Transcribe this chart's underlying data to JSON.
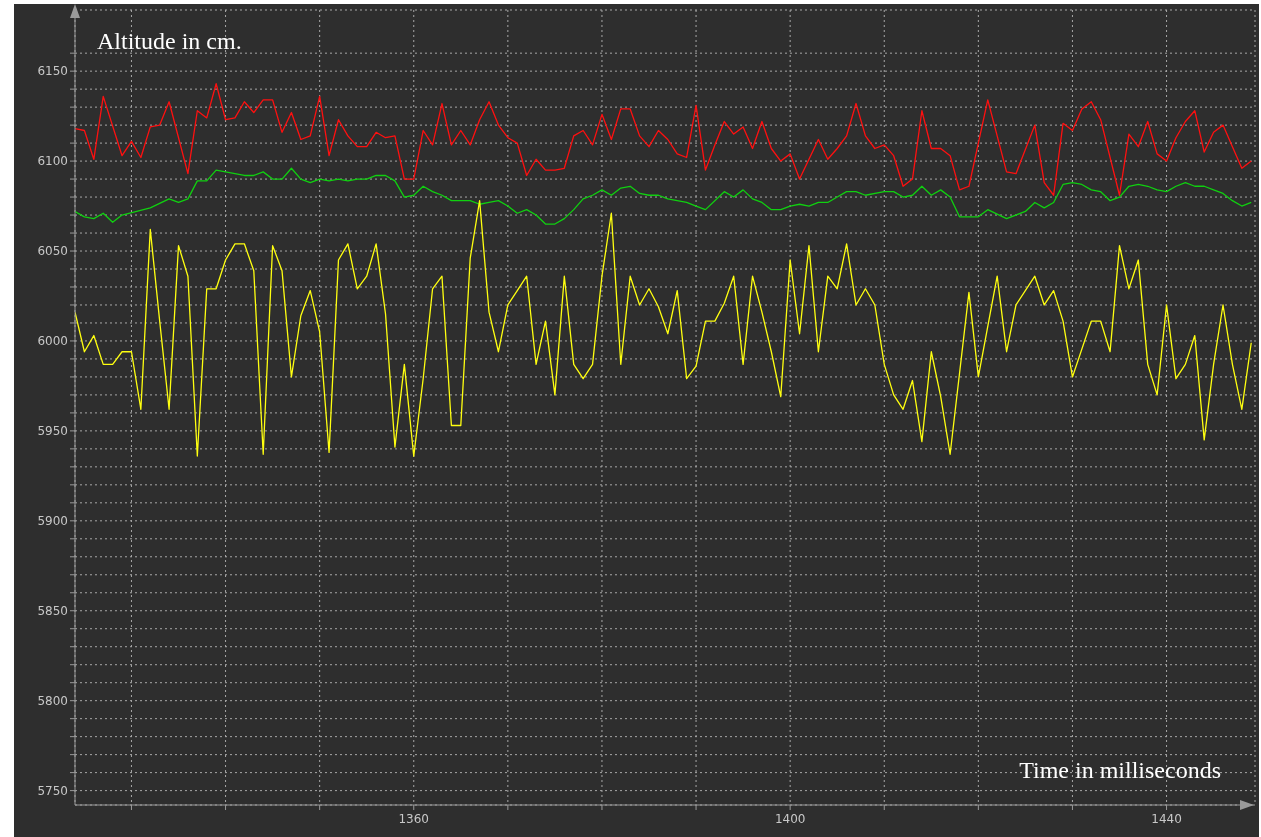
{
  "chart_data": {
    "type": "line",
    "xlabel": "Time in milliseconds",
    "ylabel": "Altitude in cm.",
    "xlim": [
      1324,
      1449.4
    ],
    "ylim": [
      5742,
      6184
    ],
    "xticks": [
      {
        "value": 1330,
        "label": null
      },
      {
        "value": 1340,
        "label": null
      },
      {
        "value": 1350,
        "label": null
      },
      1360,
      {
        "value": 1370,
        "label": null
      },
      {
        "value": 1380,
        "label": null
      },
      {
        "value": 1390,
        "label": null
      },
      1400,
      {
        "value": 1410,
        "label": null
      },
      {
        "value": 1420,
        "label": null
      },
      {
        "value": 1430,
        "label": null
      },
      1440
    ],
    "yticks": [
      5750,
      {
        "value": 5760,
        "label": null
      },
      {
        "value": 5770,
        "label": null
      },
      {
        "value": 5780,
        "label": null
      },
      {
        "value": 5790,
        "label": null
      },
      5800,
      {
        "value": 5810,
        "label": null
      },
      {
        "value": 5820,
        "label": null
      },
      {
        "value": 5830,
        "label": null
      },
      {
        "value": 5840,
        "label": null
      },
      5850,
      {
        "value": 5860,
        "label": null
      },
      {
        "value": 5870,
        "label": null
      },
      {
        "value": 5880,
        "label": null
      },
      {
        "value": 5890,
        "label": null
      },
      5900,
      {
        "value": 5910,
        "label": null
      },
      {
        "value": 5920,
        "label": null
      },
      {
        "value": 5930,
        "label": null
      },
      {
        "value": 5940,
        "label": null
      },
      5950,
      {
        "value": 5960,
        "label": null
      },
      {
        "value": 5970,
        "label": null
      },
      {
        "value": 5980,
        "label": null
      },
      {
        "value": 5990,
        "label": null
      },
      6000,
      {
        "value": 6010,
        "label": null
      },
      {
        "value": 6020,
        "label": null
      },
      {
        "value": 6030,
        "label": null
      },
      {
        "value": 6040,
        "label": null
      },
      6050,
      {
        "value": 6060,
        "label": null
      },
      {
        "value": 6070,
        "label": null
      },
      {
        "value": 6080,
        "label": null
      },
      {
        "value": 6090,
        "label": null
      },
      6100,
      {
        "value": 6110,
        "label": null
      },
      {
        "value": 6120,
        "label": null
      },
      {
        "value": 6130,
        "label": null
      },
      {
        "value": 6140,
        "label": null
      },
      6150,
      {
        "value": 6160,
        "label": null
      }
    ],
    "grid": true,
    "series": [
      {
        "color": "#ff1010",
        "x": [
          1324,
          1325,
          1326,
          1327,
          1329,
          1330,
          1331,
          1332,
          1333,
          1334,
          1336,
          1337,
          1338,
          1339,
          1340,
          1341,
          1342,
          1343,
          1344,
          1345,
          1346,
          1347,
          1348,
          1349,
          1350,
          1351,
          1352,
          1353,
          1354,
          1355,
          1356,
          1357,
          1358,
          1359,
          1360,
          1361,
          1362,
          1363,
          1364,
          1365,
          1366,
          1367,
          1368,
          1369,
          1370,
          1371,
          1372,
          1373,
          1374,
          1375,
          1376,
          1377,
          1378,
          1379,
          1380,
          1381,
          1382,
          1383,
          1384,
          1385,
          1386,
          1387,
          1388,
          1389,
          1390,
          1391,
          1392,
          1393,
          1394,
          1395,
          1396,
          1397,
          1398,
          1399,
          1400,
          1401,
          1402,
          1403,
          1404,
          1405,
          1406,
          1407,
          1408,
          1409,
          1410,
          1411,
          1412,
          1413,
          1414,
          1415,
          1416,
          1417,
          1418,
          1419,
          1421,
          1423,
          1424,
          1426,
          1427,
          1428,
          1429,
          1430,
          1431,
          1432,
          1433,
          1435,
          1436,
          1437,
          1438,
          1439,
          1440,
          1441,
          1442,
          1443,
          1444,
          1445,
          1446,
          1447,
          1448,
          1449
        ],
        "values": [
          6118,
          6117,
          6101,
          6136,
          6103,
          6111,
          6102,
          6119,
          6120,
          6133,
          6093,
          6128,
          6124,
          6143,
          6123,
          6124,
          6133,
          6127,
          6134,
          6134,
          6116,
          6127,
          6112,
          6114,
          6136,
          6103,
          6123,
          6114,
          6108,
          6108,
          6116,
          6113,
          6114,
          6090,
          6090,
          6117,
          6109,
          6132,
          6109,
          6117,
          6109,
          6123,
          6133,
          6120,
          6113,
          6110,
          6092,
          6101,
          6095,
          6095,
          6096,
          6114,
          6117,
          6109,
          6126,
          6112,
          6129,
          6129,
          6114,
          6108,
          6117,
          6112,
          6104,
          6102,
          6131,
          6095,
          6109,
          6122,
          6115,
          6119,
          6107,
          6122,
          6107,
          6100,
          6104,
          6090,
          6101,
          6112,
          6101,
          6107,
          6114,
          6132,
          6114,
          6107,
          6109,
          6103,
          6086,
          6090,
          6128,
          6107,
          6107,
          6103,
          6084,
          6086,
          6134,
          6094,
          6093,
          6120,
          6088,
          6081,
          6121,
          6117,
          6129,
          6133,
          6123,
          6081,
          6115,
          6108,
          6122,
          6104,
          6100,
          6113,
          6122,
          6128,
          6105,
          6116,
          6120,
          6108,
          6096,
          6100
        ]
      },
      {
        "color": "#10d010",
        "x": [
          1324,
          1325,
          1326,
          1327,
          1328,
          1329,
          1332,
          1334,
          1335,
          1336,
          1337,
          1338,
          1339,
          1340,
          1342,
          1343,
          1344,
          1345,
          1346,
          1347,
          1348,
          1349,
          1350,
          1351,
          1352,
          1353,
          1354,
          1355,
          1356,
          1357,
          1358,
          1359,
          1360,
          1361,
          1362,
          1363,
          1364,
          1366,
          1367,
          1368,
          1369,
          1370,
          1371,
          1372,
          1373,
          1374,
          1375,
          1376,
          1377,
          1378,
          1379,
          1380,
          1381,
          1382,
          1383,
          1384,
          1385,
          1386,
          1387,
          1389,
          1390,
          1391,
          1393,
          1394,
          1395,
          1396,
          1397,
          1398,
          1399,
          1400,
          1401,
          1402,
          1403,
          1404,
          1405,
          1406,
          1407,
          1408,
          1410,
          1411,
          1412,
          1413,
          1414,
          1415,
          1416,
          1417,
          1418,
          1420,
          1421,
          1423,
          1425,
          1426,
          1427,
          1428,
          1429,
          1430,
          1431,
          1432,
          1433,
          1434,
          1435,
          1436,
          1437,
          1438,
          1439,
          1440,
          1441,
          1442,
          1443,
          1444,
          1445,
          1446,
          1447,
          1448,
          1449
        ],
        "values": [
          6072,
          6069,
          6068,
          6071,
          6066,
          6070,
          6074,
          6079,
          6077,
          6079,
          6089,
          6089,
          6095,
          6094,
          6092,
          6092,
          6094,
          6090,
          6090,
          6096,
          6090,
          6088,
          6090,
          6089,
          6090,
          6089,
          6090,
          6090,
          6092,
          6092,
          6089,
          6080,
          6081,
          6086,
          6083,
          6081,
          6078,
          6078,
          6076,
          6077,
          6078,
          6075,
          6071,
          6073,
          6070,
          6065,
          6065,
          6068,
          6073,
          6079,
          6081,
          6084,
          6081,
          6085,
          6086,
          6082,
          6081,
          6081,
          6079,
          6077,
          6075,
          6073,
          6083,
          6080,
          6084,
          6079,
          6077,
          6073,
          6073,
          6075,
          6076,
          6075,
          6077,
          6077,
          6080,
          6083,
          6083,
          6081,
          6083,
          6083,
          6080,
          6081,
          6086,
          6081,
          6084,
          6080,
          6069,
          6069,
          6073,
          6068,
          6072,
          6077,
          6074,
          6077,
          6087,
          6088,
          6087,
          6084,
          6083,
          6078,
          6080,
          6086,
          6087,
          6086,
          6084,
          6083,
          6086,
          6088,
          6086,
          6086,
          6084,
          6082,
          6078,
          6075,
          6077
        ]
      },
      {
        "color": "#ffff10",
        "x": [
          1324,
          1325,
          1326,
          1327,
          1328,
          1329,
          1330,
          1331,
          1332,
          1333,
          1334,
          1335,
          1336,
          1337,
          1338,
          1339,
          1340,
          1341,
          1342,
          1343,
          1344,
          1345,
          1346,
          1347,
          1348,
          1349,
          1350,
          1351,
          1352,
          1353,
          1354,
          1355,
          1356,
          1357,
          1358,
          1359,
          1360,
          1361,
          1362,
          1363,
          1364,
          1365,
          1366,
          1367,
          1368,
          1369,
          1370,
          1371,
          1372,
          1373,
          1374,
          1375,
          1376,
          1377,
          1378,
          1379,
          1380,
          1381,
          1382,
          1383,
          1384,
          1385,
          1386,
          1387,
          1388,
          1389,
          1390,
          1391,
          1392,
          1393,
          1394,
          1395,
          1396,
          1397,
          1398,
          1399,
          1400,
          1401,
          1402,
          1403,
          1404,
          1405,
          1406,
          1407,
          1408,
          1409,
          1410,
          1411,
          1412,
          1413,
          1414,
          1415,
          1416,
          1417,
          1419,
          1420,
          1422,
          1423,
          1424,
          1426,
          1427,
          1428,
          1429,
          1430,
          1432,
          1433,
          1434,
          1435,
          1436,
          1437,
          1438,
          1439,
          1440,
          1441,
          1442,
          1443,
          1444,
          1445,
          1446,
          1447,
          1448,
          1449
        ],
        "values": [
          6016,
          5994,
          6003,
          5987,
          5987,
          5994,
          5994,
          5962,
          6062,
          6011,
          5962,
          6053,
          6036,
          5936,
          6029,
          6029,
          6045,
          6054,
          6054,
          6039,
          5937,
          6053,
          6039,
          5980,
          6014,
          6028,
          6005,
          5938,
          6045,
          6054,
          6029,
          6036,
          6054,
          6015,
          5941,
          5987,
          5936,
          5979,
          6029,
          6036,
          5953,
          5953,
          6046,
          6078,
          6016,
          5994,
          6020,
          6028,
          6036,
          5987,
          6011,
          5970,
          6036,
          5987,
          5979,
          5987,
          6036,
          6071,
          5987,
          6036,
          6020,
          6029,
          6019,
          6004,
          6028,
          5979,
          5986,
          6011,
          6011,
          6021,
          6036,
          5987,
          6036,
          6016,
          5994,
          5969,
          6045,
          6004,
          6053,
          5994,
          6036,
          6029,
          6054,
          6020,
          6029,
          6020,
          5987,
          5970,
          5962,
          5978,
          5944,
          5994,
          5969,
          5937,
          6027,
          5980,
          6036,
          5994,
          6020,
          6036,
          6020,
          6028,
          6011,
          5980,
          6011,
          6011,
          5994,
          6053,
          6029,
          6045,
          5987,
          5970,
          6020,
          5979,
          5987,
          6003,
          5945,
          5987,
          6020,
          5987,
          5962,
          5999
        ]
      }
    ]
  }
}
